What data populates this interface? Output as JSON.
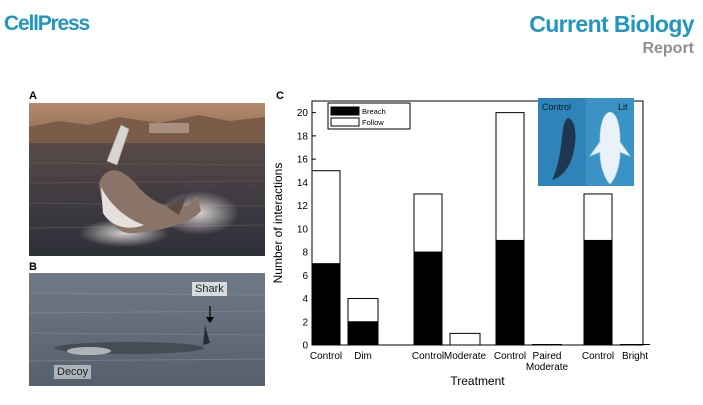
{
  "header": {
    "publisher": "CellPress",
    "journal": "Current Biology",
    "article_type": "Report"
  },
  "panels": {
    "a": {
      "label": "A"
    },
    "b": {
      "label": "B",
      "shark_label": "Shark",
      "decoy_label": "Decoy"
    },
    "c": {
      "label": "C"
    }
  },
  "colors": {
    "brand_blue": "#1f97c2",
    "report_gray": "#8f8f8f",
    "breach_fill": "#000000",
    "follow_fill": "#ffffff"
  },
  "chart_data": {
    "type": "bar",
    "stacked": true,
    "title": "",
    "xlabel": "Treatment",
    "ylabel": "Number of interactions",
    "ylim": [
      0,
      21
    ],
    "yticks": [
      0,
      2,
      4,
      6,
      8,
      10,
      12,
      14,
      16,
      18,
      20
    ],
    "categories": [
      "Control",
      "Dim",
      "Control",
      "Moderate",
      "Control",
      "Paired Moderate",
      "Control",
      "Bright"
    ],
    "series": [
      {
        "name": "Breach",
        "color": "#000000",
        "values": [
          7,
          2,
          8,
          0,
          9,
          0,
          9,
          0
        ]
      },
      {
        "name": "Follow",
        "color": "#ffffff",
        "values": [
          8,
          2,
          5,
          1,
          11,
          0,
          4,
          0
        ]
      }
    ],
    "legend_position": "top-left",
    "grid": false,
    "inset": {
      "labels": [
        "Control",
        "Lit"
      ]
    }
  }
}
